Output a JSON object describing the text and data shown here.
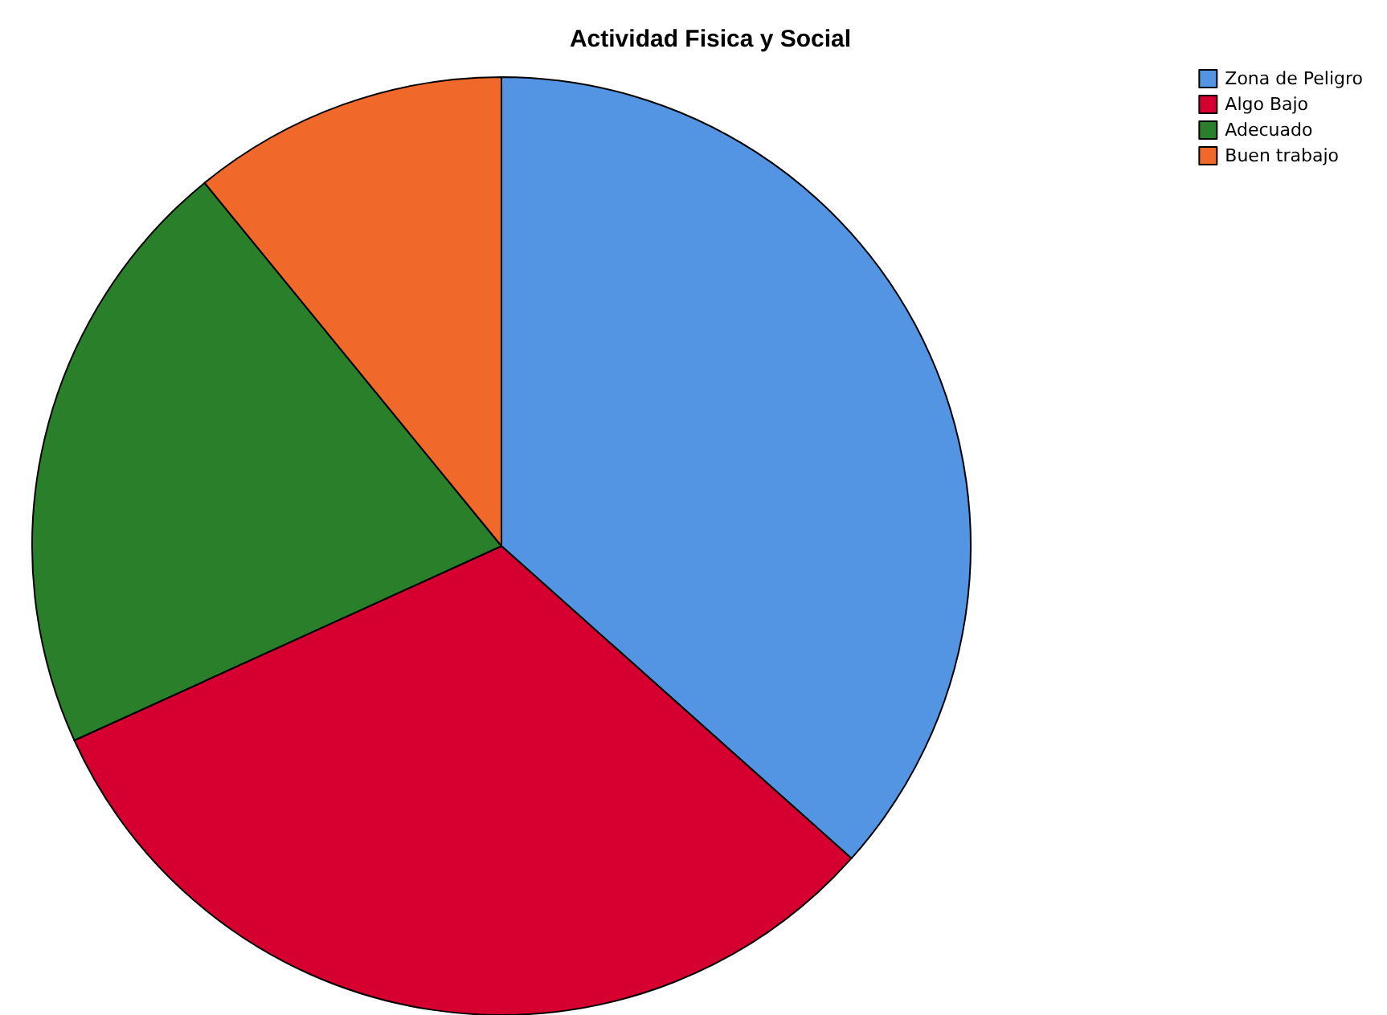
{
  "chart_data": {
    "type": "pie",
    "title": "Actividad Fisica y Social",
    "categories": [
      "Zona de Peligro",
      "Algo Bajo",
      "Adecuado",
      "Buen trabajo"
    ],
    "values": [
      36.6,
      31.6,
      20.9,
      10.9
    ],
    "colors": [
      "#5394e3",
      "#d5002f",
      "#2a7f2a",
      "#f0692b"
    ],
    "legend": "top right"
  }
}
